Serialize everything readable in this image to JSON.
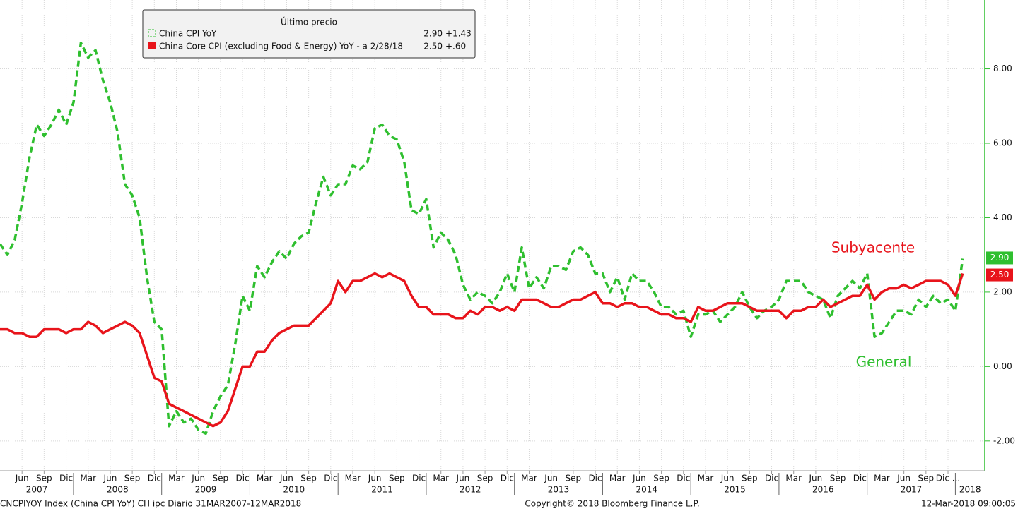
{
  "chart_data": {
    "type": "line",
    "legend_title": "Último precio",
    "x": [
      "2007-03",
      "2007-04",
      "2007-05",
      "2007-06",
      "2007-07",
      "2007-08",
      "2007-09",
      "2007-10",
      "2007-11",
      "2007-12",
      "2008-01",
      "2008-02",
      "2008-03",
      "2008-04",
      "2008-05",
      "2008-06",
      "2008-07",
      "2008-08",
      "2008-09",
      "2008-10",
      "2008-11",
      "2008-12",
      "2009-01",
      "2009-02",
      "2009-03",
      "2009-04",
      "2009-05",
      "2009-06",
      "2009-07",
      "2009-08",
      "2009-09",
      "2009-10",
      "2009-11",
      "2009-12",
      "2010-01",
      "2010-02",
      "2010-03",
      "2010-04",
      "2010-05",
      "2010-06",
      "2010-07",
      "2010-08",
      "2010-09",
      "2010-10",
      "2010-11",
      "2010-12",
      "2011-01",
      "2011-02",
      "2011-03",
      "2011-04",
      "2011-05",
      "2011-06",
      "2011-07",
      "2011-08",
      "2011-09",
      "2011-10",
      "2011-11",
      "2011-12",
      "2012-01",
      "2012-02",
      "2012-03",
      "2012-04",
      "2012-05",
      "2012-06",
      "2012-07",
      "2012-08",
      "2012-09",
      "2012-10",
      "2012-11",
      "2012-12",
      "2013-01",
      "2013-02",
      "2013-03",
      "2013-04",
      "2013-05",
      "2013-06",
      "2013-07",
      "2013-08",
      "2013-09",
      "2013-10",
      "2013-11",
      "2013-12",
      "2014-01",
      "2014-02",
      "2014-03",
      "2014-04",
      "2014-05",
      "2014-06",
      "2014-07",
      "2014-08",
      "2014-09",
      "2014-10",
      "2014-11",
      "2014-12",
      "2015-01",
      "2015-02",
      "2015-03",
      "2015-04",
      "2015-05",
      "2015-06",
      "2015-07",
      "2015-08",
      "2015-09",
      "2015-10",
      "2015-11",
      "2015-12",
      "2016-01",
      "2016-02",
      "2016-03",
      "2016-04",
      "2016-05",
      "2016-06",
      "2016-07",
      "2016-08",
      "2016-09",
      "2016-10",
      "2016-11",
      "2016-12",
      "2017-01",
      "2017-02",
      "2017-03",
      "2017-04",
      "2017-05",
      "2017-06",
      "2017-07",
      "2017-08",
      "2017-09",
      "2017-10",
      "2017-11",
      "2017-12",
      "2018-01",
      "2018-02"
    ],
    "series": [
      {
        "name": "China CPI YoY",
        "color": "#2fbf2f",
        "dashed": true,
        "legend_value": "2.90",
        "legend_change": "+1.43",
        "last_label": "2.90",
        "annotation": "General",
        "values": [
          3.3,
          3.0,
          3.4,
          4.4,
          5.6,
          6.5,
          6.2,
          6.5,
          6.9,
          6.5,
          7.1,
          8.7,
          8.3,
          8.5,
          7.7,
          7.1,
          6.3,
          4.9,
          4.6,
          4.0,
          2.4,
          1.2,
          1.0,
          -1.6,
          -1.2,
          -1.5,
          -1.4,
          -1.7,
          -1.8,
          -1.2,
          -0.8,
          -0.5,
          0.6,
          1.9,
          1.5,
          2.7,
          2.4,
          2.8,
          3.1,
          2.9,
          3.3,
          3.5,
          3.6,
          4.4,
          5.1,
          4.6,
          4.9,
          4.9,
          5.4,
          5.3,
          5.5,
          6.4,
          6.5,
          6.2,
          6.1,
          5.5,
          4.2,
          4.1,
          4.5,
          3.2,
          3.6,
          3.4,
          3.0,
          2.2,
          1.8,
          2.0,
          1.9,
          1.7,
          2.0,
          2.5,
          2.0,
          3.2,
          2.1,
          2.4,
          2.1,
          2.7,
          2.7,
          2.6,
          3.1,
          3.2,
          3.0,
          2.5,
          2.5,
          2.0,
          2.4,
          1.8,
          2.5,
          2.3,
          2.3,
          2.0,
          1.6,
          1.6,
          1.4,
          1.5,
          0.8,
          1.4,
          1.4,
          1.5,
          1.2,
          1.4,
          1.6,
          2.0,
          1.6,
          1.3,
          1.5,
          1.6,
          1.8,
          2.3,
          2.3,
          2.3,
          2.0,
          1.9,
          1.8,
          1.3,
          1.9,
          2.1,
          2.3,
          2.1,
          2.5,
          0.8,
          0.9,
          1.2,
          1.5,
          1.5,
          1.4,
          1.8,
          1.6,
          1.9,
          1.7,
          1.8,
          1.5,
          2.9
        ]
      },
      {
        "name": "China Core CPI (excluding Food & Energy) YoY -  a 2/28/18",
        "color": "#e8141b",
        "dashed": false,
        "legend_value": "2.50",
        "legend_change": "+.60",
        "last_label": "2.50",
        "annotation": "Subyacente",
        "values": [
          1.0,
          1.0,
          0.9,
          0.9,
          0.8,
          0.8,
          1.0,
          1.0,
          1.0,
          0.9,
          1.0,
          1.0,
          1.2,
          1.1,
          0.9,
          1.0,
          1.1,
          1.2,
          1.1,
          0.9,
          0.3,
          -0.3,
          -0.4,
          -1.0,
          -1.1,
          -1.2,
          -1.3,
          -1.4,
          -1.5,
          -1.6,
          -1.5,
          -1.2,
          -0.6,
          0.0,
          0.0,
          0.4,
          0.4,
          0.7,
          0.9,
          1.0,
          1.1,
          1.1,
          1.1,
          1.3,
          1.5,
          1.7,
          2.3,
          2.0,
          2.3,
          2.3,
          2.4,
          2.5,
          2.4,
          2.5,
          2.4,
          2.3,
          1.9,
          1.6,
          1.6,
          1.4,
          1.4,
          1.4,
          1.3,
          1.3,
          1.5,
          1.4,
          1.6,
          1.6,
          1.5,
          1.6,
          1.5,
          1.8,
          1.8,
          1.8,
          1.7,
          1.6,
          1.6,
          1.7,
          1.8,
          1.8,
          1.9,
          2.0,
          1.7,
          1.7,
          1.6,
          1.7,
          1.7,
          1.6,
          1.6,
          1.5,
          1.4,
          1.4,
          1.3,
          1.3,
          1.2,
          1.6,
          1.5,
          1.5,
          1.6,
          1.7,
          1.7,
          1.7,
          1.6,
          1.5,
          1.5,
          1.5,
          1.5,
          1.3,
          1.5,
          1.5,
          1.6,
          1.6,
          1.8,
          1.6,
          1.7,
          1.8,
          1.9,
          1.9,
          2.2,
          1.8,
          2.0,
          2.1,
          2.1,
          2.2,
          2.1,
          2.2,
          2.3,
          2.3,
          2.3,
          2.2,
          1.9,
          2.5
        ]
      }
    ],
    "xlim": [
      "2007-03",
      "2018-05"
    ],
    "xticks": [
      {
        "value": "2007-06",
        "label": "Jun"
      },
      {
        "value": "2007-09",
        "label": "Sep"
      },
      {
        "value": "2007-12",
        "label": "Dic"
      },
      {
        "value": "2008-03",
        "label": "Mar"
      },
      {
        "value": "2008-06",
        "label": "Jun"
      },
      {
        "value": "2008-09",
        "label": "Sep"
      },
      {
        "value": "2008-12",
        "label": "Dic"
      },
      {
        "value": "2009-03",
        "label": "Mar"
      },
      {
        "value": "2009-06",
        "label": "Jun"
      },
      {
        "value": "2009-09",
        "label": "Sep"
      },
      {
        "value": "2009-12",
        "label": "Dic"
      },
      {
        "value": "2010-03",
        "label": "Mar"
      },
      {
        "value": "2010-06",
        "label": "Jun"
      },
      {
        "value": "2010-09",
        "label": "Sep"
      },
      {
        "value": "2010-12",
        "label": "Dic"
      },
      {
        "value": "2011-03",
        "label": "Mar"
      },
      {
        "value": "2011-06",
        "label": "Jun"
      },
      {
        "value": "2011-09",
        "label": "Sep"
      },
      {
        "value": "2011-12",
        "label": "Dic"
      },
      {
        "value": "2012-03",
        "label": "Mar"
      },
      {
        "value": "2012-06",
        "label": "Jun"
      },
      {
        "value": "2012-09",
        "label": "Sep"
      },
      {
        "value": "2012-12",
        "label": "Dic"
      },
      {
        "value": "2013-03",
        "label": "Mar"
      },
      {
        "value": "2013-06",
        "label": "Jun"
      },
      {
        "value": "2013-09",
        "label": "Sep"
      },
      {
        "value": "2013-12",
        "label": "Dic"
      },
      {
        "value": "2014-03",
        "label": "Mar"
      },
      {
        "value": "2014-06",
        "label": "Jun"
      },
      {
        "value": "2014-09",
        "label": "Sep"
      },
      {
        "value": "2014-12",
        "label": "Dic"
      },
      {
        "value": "2015-03",
        "label": "Mar"
      },
      {
        "value": "2015-06",
        "label": "Jun"
      },
      {
        "value": "2015-09",
        "label": "Sep"
      },
      {
        "value": "2015-12",
        "label": "Dic"
      },
      {
        "value": "2016-03",
        "label": "Mar"
      },
      {
        "value": "2016-06",
        "label": "Jun"
      },
      {
        "value": "2016-09",
        "label": "Sep"
      },
      {
        "value": "2016-12",
        "label": "Dic"
      },
      {
        "value": "2017-03",
        "label": "Mar"
      },
      {
        "value": "2017-06",
        "label": "Jun"
      },
      {
        "value": "2017-09",
        "label": "Sep"
      },
      {
        "value": "2017-12",
        "label": "Dic ..."
      }
    ],
    "year_ticks": [
      2007,
      2008,
      2009,
      2010,
      2011,
      2012,
      2013,
      2014,
      2015,
      2016,
      2017,
      2018
    ],
    "ylim": [
      -2.8,
      9.85
    ],
    "yticks": [
      {
        "value": -2,
        "label": "-2.00"
      },
      {
        "value": 0,
        "label": "0.00"
      },
      {
        "value": 2,
        "label": "2.00"
      },
      {
        "value": 4,
        "label": "4.00"
      },
      {
        "value": 6,
        "label": "6.00"
      },
      {
        "value": 8,
        "label": "8.00"
      }
    ],
    "grid": true,
    "footer_left": "CNCPIYOY Index (China CPI YoY) CH ipc  Diario 31MAR2007-12MAR2018",
    "footer_center": "Copyright© 2018 Bloomberg Finance L.P.",
    "footer_right": "12-Mar-2018 09:00:05"
  }
}
